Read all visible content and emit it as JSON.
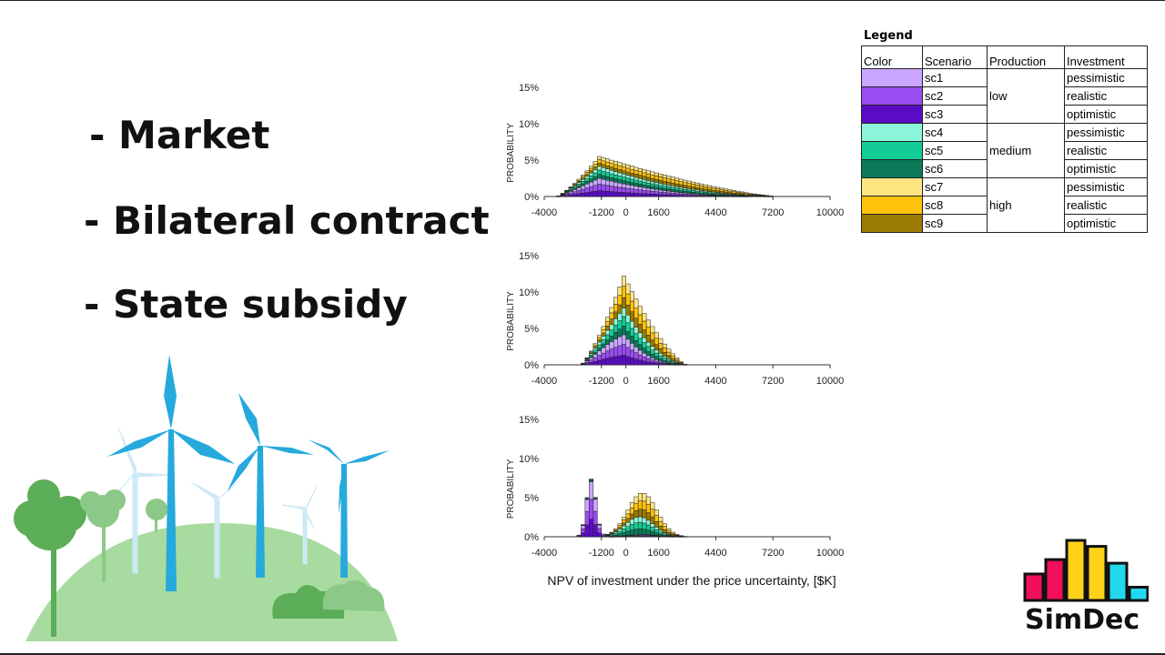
{
  "bullets": [
    "- Market",
    "- Bilateral contract",
    "- State subsidy"
  ],
  "colors": {
    "sc1": "#c9a6ff",
    "sc2": "#9a4bf0",
    "sc3": "#5a0cc4",
    "sc4": "#8cf5d9",
    "sc5": "#14cc96",
    "sc6": "#0a7a58",
    "sc7": "#ffe482",
    "sc8": "#ffc20a",
    "sc9": "#9a7a00"
  },
  "legend": {
    "title": "Legend",
    "headers": [
      "Color",
      "Scenario",
      "Production",
      "Investment"
    ],
    "rows": [
      {
        "scenario": "sc1",
        "production": "low",
        "investment": "pessimistic"
      },
      {
        "scenario": "sc2",
        "production": "low",
        "investment": "realistic"
      },
      {
        "scenario": "sc3",
        "production": "low",
        "investment": "optimistic"
      },
      {
        "scenario": "sc4",
        "production": "medium",
        "investment": "pessimistic"
      },
      {
        "scenario": "sc5",
        "production": "medium",
        "investment": "realistic"
      },
      {
        "scenario": "sc6",
        "production": "medium",
        "investment": "optimistic"
      },
      {
        "scenario": "sc7",
        "production": "high",
        "investment": "pessimistic"
      },
      {
        "scenario": "sc8",
        "production": "high",
        "investment": "realistic"
      },
      {
        "scenario": "sc9",
        "production": "high",
        "investment": "optimistic"
      }
    ]
  },
  "xlabel": "NPV of investment under the price uncertainty, [$K]",
  "logo": {
    "text": "SimDec",
    "bars": [
      {
        "level": 0.44,
        "color": "#f0105a"
      },
      {
        "level": 0.68,
        "color": "#f0105a"
      },
      {
        "level": 1.0,
        "color": "#ffd21a"
      },
      {
        "level": 0.9,
        "color": "#ffd21a"
      },
      {
        "level": 0.62,
        "color": "#22d8ee"
      },
      {
        "level": 0.22,
        "color": "#22d8ee"
      }
    ]
  },
  "chart_data": [
    {
      "type": "bar",
      "stacked": true,
      "panel": "Market",
      "ylabel": "PROBABILITY",
      "ylim": [
        0,
        15
      ],
      "yticks": [
        "0%",
        "5%",
        "10%",
        "15%"
      ],
      "xlim": [
        -4000,
        10000
      ],
      "xticks": [
        "-4000",
        "-1200",
        "0",
        "1600",
        "4400",
        "7200",
        "10000"
      ],
      "xtick_values": [
        -4000,
        -1200,
        0,
        1600,
        4400,
        7200,
        10000
      ],
      "dist": {
        "type": "skew",
        "start": -3400,
        "peak": -1300,
        "end": 7600,
        "height": 5.5
      }
    },
    {
      "type": "bar",
      "stacked": true,
      "panel": "Bilateral contract",
      "ylabel": "PROBABILITY",
      "ylim": [
        0,
        15
      ],
      "yticks": [
        "0%",
        "5%",
        "10%",
        "15%"
      ],
      "xlim": [
        -4000,
        10000
      ],
      "xticks": [
        "-4000",
        "-1200",
        "0",
        "1600",
        "4400",
        "7200",
        "10000"
      ],
      "xtick_values": [
        -4000,
        -1200,
        0,
        1600,
        4400,
        7200,
        10000
      ],
      "dist": {
        "type": "skew",
        "start": -2200,
        "peak": -100,
        "end": 3000,
        "height": 12.2
      }
    },
    {
      "type": "bar",
      "stacked": true,
      "panel": "State subsidy",
      "ylabel": "PROBABILITY",
      "ylim": [
        0,
        15
      ],
      "yticks": [
        "0%",
        "5%",
        "10%",
        "15%"
      ],
      "xlim": [
        -4000,
        10000
      ],
      "xticks": [
        "-4000",
        "-1200",
        "0",
        "1600",
        "4400",
        "7200",
        "10000"
      ],
      "xtick_values": [
        -4000,
        -1200,
        0,
        1600,
        4400,
        7200,
        10000
      ],
      "dist": {
        "type": "bimodal",
        "peak1": -1700,
        "height1": 7.4,
        "peak2": 800,
        "height2": 5.6,
        "start": -3400,
        "end": 3800
      }
    }
  ]
}
